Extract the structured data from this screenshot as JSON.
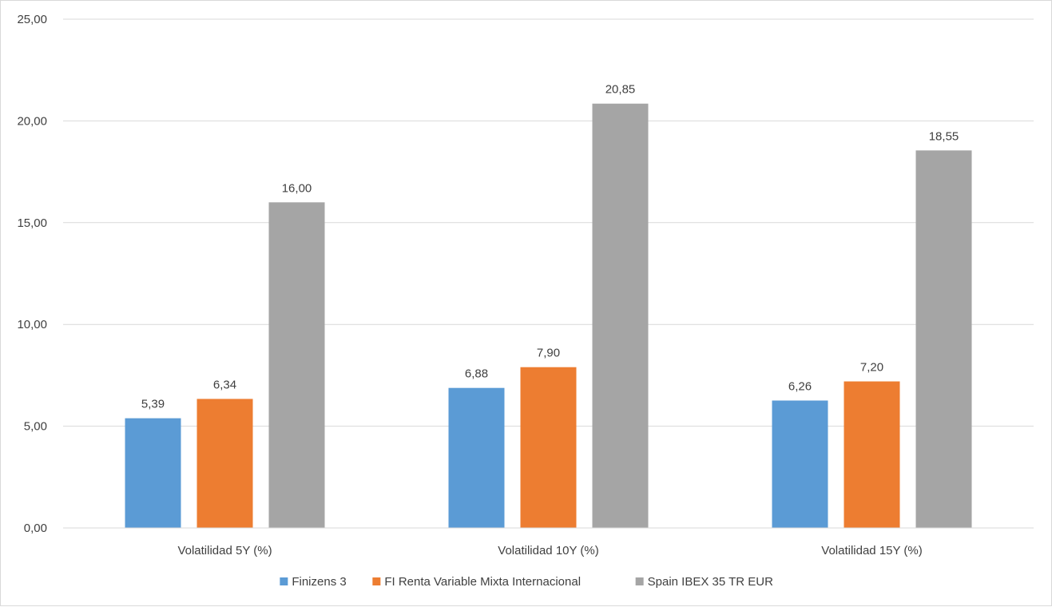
{
  "chart_data": {
    "type": "bar",
    "title": "",
    "xlabel": "",
    "ylabel": "",
    "categories": [
      "Volatilidad 5Y (%)",
      "Volatilidad 10Y (%)",
      "Volatilidad 15Y (%)"
    ],
    "series": [
      {
        "name": "Finizens 3",
        "color": "#5b9bd5",
        "values": [
          5.39,
          6.88,
          6.26
        ],
        "labels": [
          "5,39",
          "6,88",
          "6,26"
        ]
      },
      {
        "name": "FI Renta Variable Mixta Internacional",
        "color": "#ed7d31",
        "values": [
          6.34,
          7.9,
          7.2
        ],
        "labels": [
          "6,34",
          "7,90",
          "7,20"
        ]
      },
      {
        "name": "Spain IBEX 35 TR EUR",
        "color": "#a5a5a5",
        "values": [
          16.0,
          20.85,
          18.55
        ],
        "labels": [
          "16,00",
          "20,85",
          "18,55"
        ]
      }
    ],
    "ylim": [
      0,
      25
    ],
    "yticks": [
      0,
      5,
      10,
      15,
      20,
      25
    ],
    "ytick_labels": [
      "0,00",
      "5,00",
      "10,00",
      "15,00",
      "20,00",
      "25,00"
    ],
    "grid": true,
    "legend_position": "bottom",
    "gridline_color": "#d9d9d9",
    "text_color": "#404040"
  }
}
